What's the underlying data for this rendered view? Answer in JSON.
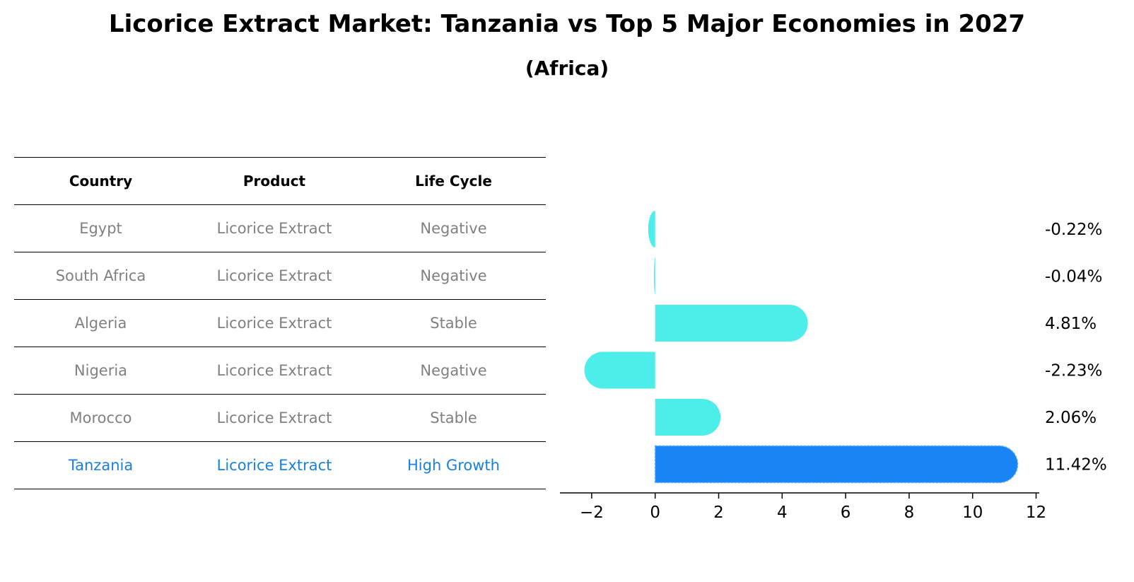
{
  "title": "Licorice Extract Market: Tanzania vs Top 5 Major Economies in 2027",
  "subtitle": "(Africa)",
  "table": {
    "headers": [
      "Country",
      "Product",
      "Life Cycle"
    ],
    "rows": [
      {
        "country": "Egypt",
        "product": "Licorice Extract",
        "life_cycle": "Negative"
      },
      {
        "country": "South Africa",
        "product": "Licorice Extract",
        "life_cycle": "Negative"
      },
      {
        "country": "Algeria",
        "product": "Licorice Extract",
        "life_cycle": "Stable"
      },
      {
        "country": "Nigeria",
        "product": "Licorice Extract",
        "life_cycle": "Negative"
      },
      {
        "country": "Morocco",
        "product": "Licorice Extract",
        "life_cycle": "Stable"
      },
      {
        "country": "Tanzania",
        "product": "Licorice Extract",
        "life_cycle": "High Growth"
      }
    ]
  },
  "colors": {
    "bar": "#4deeea",
    "highlight_bar": "#1985f5",
    "muted_text": "#808080",
    "highlight_text": "#1a80e0"
  },
  "chart_data": {
    "type": "bar",
    "orientation": "horizontal",
    "categories": [
      "Egypt",
      "South Africa",
      "Algeria",
      "Nigeria",
      "Morocco",
      "Tanzania"
    ],
    "values": [
      -0.22,
      -0.04,
      4.81,
      -2.23,
      2.06,
      11.42
    ],
    "value_labels": [
      "-0.22%",
      "-0.04%",
      "4.81%",
      "-2.23%",
      "2.06%",
      "11.42%"
    ],
    "highlight": "Tanzania",
    "xlim": [
      -3,
      12.1
    ],
    "xticks": [
      -2,
      0,
      2,
      4,
      6,
      8,
      10,
      12
    ],
    "xtick_labels": [
      "−2",
      "0",
      "2",
      "4",
      "6",
      "8",
      "10",
      "12"
    ],
    "grid": false,
    "legend": "none"
  }
}
